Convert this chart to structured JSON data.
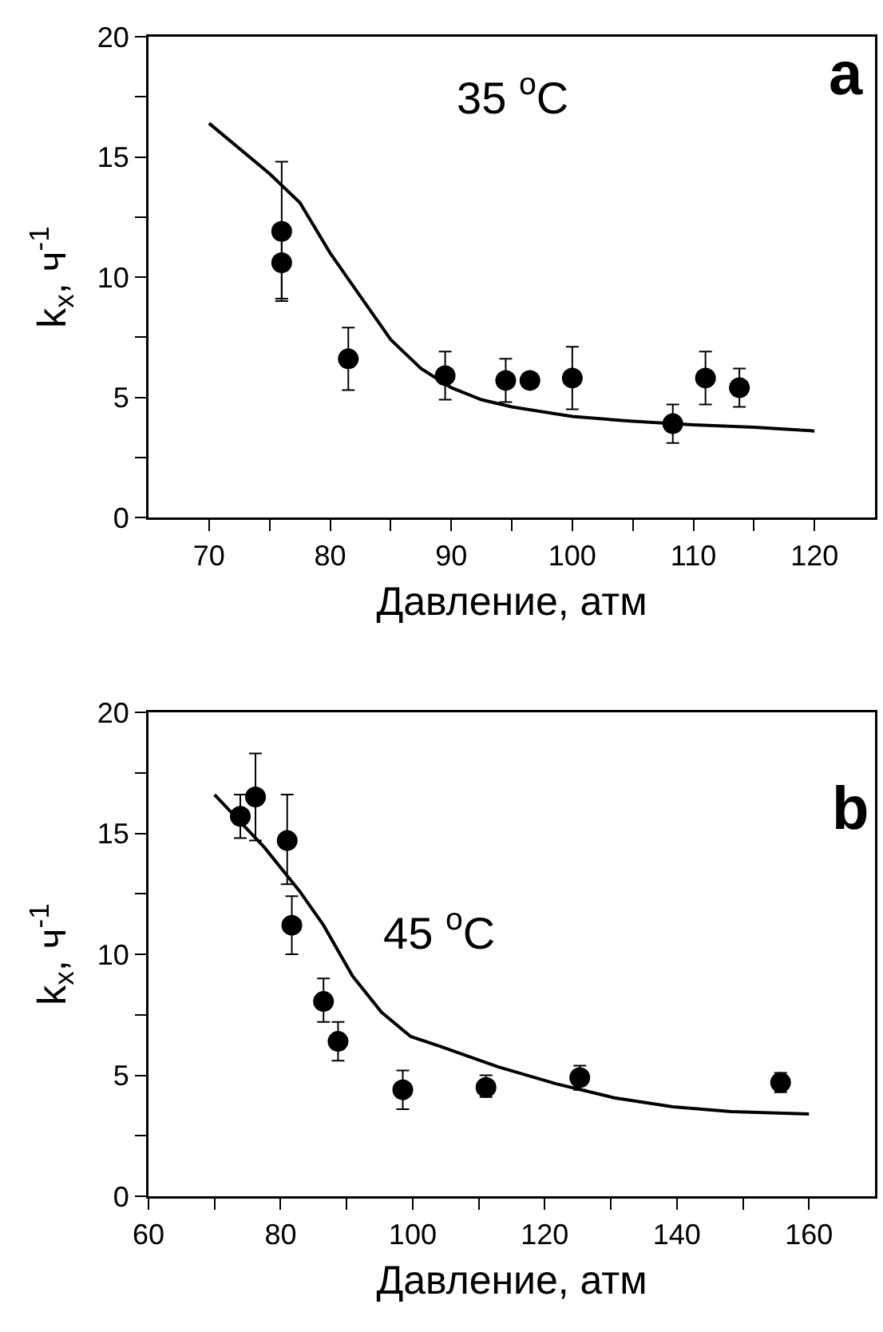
{
  "chart_data": [
    {
      "type": "scatter",
      "xlabel": "Давление, атм",
      "ylabel": "k$_{x}$, ч$^{-1}$",
      "annotations": [
        "35 $^{o}$C",
        "a"
      ],
      "xlim": [
        65,
        125
      ],
      "xticks": [
        70,
        {
          "value": 75,
          "label": null
        },
        80,
        {
          "value": 85,
          "label": null
        },
        90,
        {
          "value": 95,
          "label": null
        },
        100,
        {
          "value": 105,
          "label": null
        },
        110,
        {
          "value": 115,
          "label": null
        },
        120
      ],
      "ylim": [
        0,
        20
      ],
      "yticks": [
        0,
        {
          "value": 2.5,
          "label": null
        },
        5,
        {
          "value": 7.5,
          "label": null
        },
        10,
        {
          "value": 12.5,
          "label": null
        },
        15,
        {
          "value": 17.5,
          "label": null
        },
        20
      ],
      "grid": false,
      "line_style": "solid",
      "series": [
        {
          "marker": "circle",
          "color": "#000000",
          "x": [
            76,
            76,
            81.5,
            89.5,
            94.5,
            96.5,
            100,
            108.3,
            111,
            113.8
          ],
          "values": [
            11.9,
            10.6,
            6.6,
            5.9,
            5.7,
            5.7,
            5.8,
            3.9,
            5.8,
            5.4
          ],
          "errors": [
            [
              9.1,
              14.8
            ],
            [
              9.0,
              12.2
            ],
            [
              5.3,
              7.9
            ],
            [
              4.9,
              6.9
            ],
            [
              4.8,
              6.6
            ],
            null,
            [
              4.5,
              7.1
            ],
            [
              3.1,
              4.7
            ],
            [
              4.7,
              6.9
            ],
            [
              4.6,
              6.2
            ]
          ]
        },
        {
          "type": "line",
          "color": "#000000",
          "x": [
            70,
            75,
            77.5,
            80,
            82.5,
            85,
            87.5,
            90,
            92.5,
            95,
            100,
            105,
            110,
            115,
            120
          ],
          "values": [
            16.4,
            14.3,
            13.1,
            11.0,
            9.2,
            7.4,
            6.2,
            5.4,
            4.9,
            4.6,
            4.2,
            4.0,
            3.85,
            3.75,
            3.6
          ]
        }
      ]
    },
    {
      "type": "scatter",
      "xlabel": "Давление, атм",
      "ylabel": "k$_{x}$, ч$^{-1}$",
      "annotations": [
        "45 $^{o}$C",
        "b"
      ],
      "xlim": [
        60,
        170
      ],
      "xticks": [
        60,
        {
          "value": 70,
          "label": null
        },
        80,
        {
          "value": 90,
          "label": null
        },
        100,
        {
          "value": 110,
          "label": null
        },
        120,
        {
          "value": 130,
          "label": null
        },
        140,
        {
          "value": 150,
          "label": null
        },
        160
      ],
      "ylim": [
        0,
        20
      ],
      "yticks": [
        0,
        {
          "value": 2.5,
          "label": null
        },
        5,
        {
          "value": 7.5,
          "label": null
        },
        10,
        {
          "value": 12.5,
          "label": null
        },
        15,
        {
          "value": 17.5,
          "label": null
        },
        20
      ],
      "grid": false,
      "line_style": "solid",
      "series": [
        {
          "marker": "circle",
          "color": "#000000",
          "x": [
            73.9,
            76.2,
            81.0,
            81.7,
            86.5,
            88.7,
            98.5,
            111.1,
            125.3,
            155.7
          ],
          "values": [
            15.7,
            16.5,
            14.7,
            11.2,
            8.05,
            6.4,
            4.4,
            4.5,
            4.9,
            4.7
          ],
          "errors": [
            [
              14.8,
              16.6
            ],
            [
              14.7,
              18.3
            ],
            [
              12.9,
              16.6
            ],
            [
              10.0,
              12.4
            ],
            [
              7.2,
              9.0
            ],
            [
              5.6,
              7.2
            ],
            [
              3.6,
              5.2
            ],
            [
              4.1,
              5.0
            ],
            [
              4.4,
              5.4
            ],
            [
              4.3,
              5.1
            ]
          ]
        },
        {
          "type": "line",
          "color": "#000000",
          "x": [
            70,
            77.6,
            82.9,
            86.5,
            90.9,
            95.3,
            99.7,
            104.1,
            112.9,
            121.7,
            130.5,
            139.4,
            148.2,
            160
          ],
          "values": [
            16.6,
            14.4,
            12.6,
            11.2,
            9.1,
            7.6,
            6.6,
            6.2,
            5.35,
            4.65,
            4.07,
            3.7,
            3.5,
            3.4
          ]
        }
      ]
    }
  ]
}
